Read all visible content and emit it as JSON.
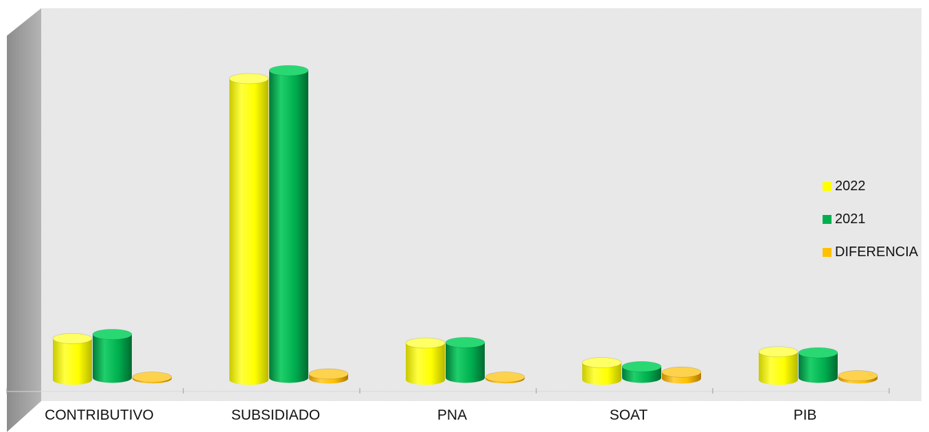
{
  "chart_data": {
    "type": "bar",
    "title": "",
    "xlabel": "",
    "ylabel": "",
    "categories": [
      "CONTRIBUTIVO",
      "SUBSIDIADO",
      "PNA",
      "SOAT",
      "PIB"
    ],
    "series": [
      {
        "name": "2022",
        "color": "#ffff00",
        "values": [
          13.7,
          100,
          12.2,
          5.7,
          9.3
        ]
      },
      {
        "name": "2021",
        "color": "#00b050",
        "values": [
          14.4,
          102,
          11.7,
          3.7,
          8.3
        ]
      },
      {
        "name": "DIFERENCIA",
        "color": "#ffc000",
        "values": [
          0.2,
          1.5,
          0.3,
          2.1,
          0.9
        ]
      }
    ],
    "ylim": [
      0,
      110
    ],
    "grid": false,
    "legend_position": "right",
    "style": "3d-cylinder"
  }
}
